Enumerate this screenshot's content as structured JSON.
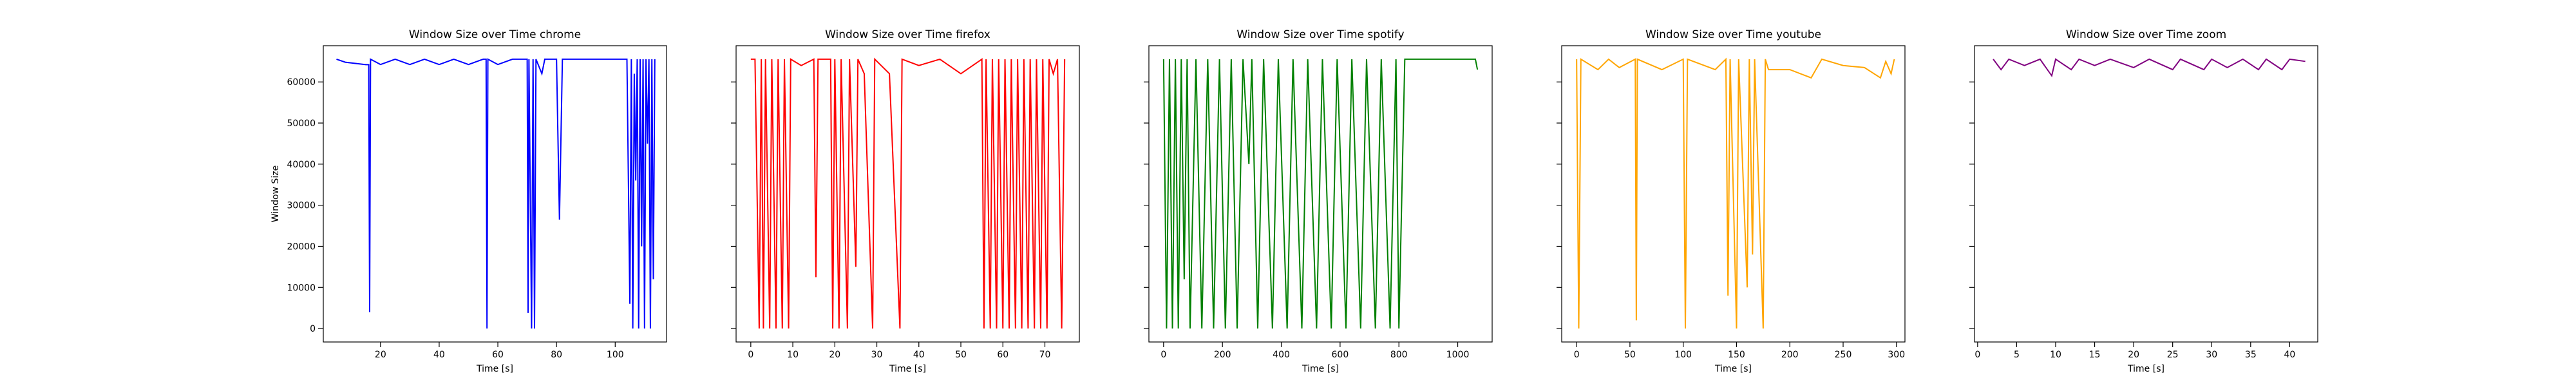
{
  "chart_data": [
    {
      "type": "line",
      "title": "Window Size over Time chrome",
      "xlabel": "Time [s]",
      "ylabel": "Window Size",
      "color": "#0000ff",
      "x": [
        5,
        8,
        15,
        16,
        16.3,
        16.6,
        20,
        25,
        30,
        35,
        40,
        45,
        50,
        55,
        56,
        56.3,
        56.6,
        60,
        65,
        70,
        70.3,
        70.6,
        71.5,
        72,
        72.5,
        73,
        75,
        76,
        80,
        81,
        82,
        90,
        100,
        104,
        105,
        105.5,
        106,
        106.5,
        107,
        107.5,
        108,
        108.5,
        109,
        109.5,
        110,
        110.5,
        111,
        111.5,
        112,
        112.5,
        113,
        113.5
      ],
      "values": [
        65535,
        64800,
        64200,
        64200,
        4000,
        65535,
        64240,
        65535,
        64240,
        65535,
        64240,
        65535,
        64240,
        65535,
        65535,
        0,
        65535,
        64240,
        65535,
        65535,
        3800,
        65535,
        0,
        65535,
        0,
        65535,
        62000,
        65535,
        65535,
        26500,
        65535,
        65535,
        65535,
        65535,
        6000,
        65535,
        0,
        62000,
        36000,
        65535,
        0,
        65535,
        20000,
        65535,
        0,
        65535,
        45000,
        65535,
        0,
        65535,
        12000,
        65535
      ],
      "xlim": [
        0.5,
        117.5
      ],
      "ylim": [
        -3277,
        68812
      ],
      "xticks": [
        20,
        40,
        60,
        80,
        100
      ],
      "yticks": [
        0,
        10000,
        20000,
        30000,
        40000,
        50000,
        60000
      ]
    },
    {
      "type": "line",
      "title": "Window Size over Time firefox",
      "xlabel": "Time [s]",
      "color": "#ff0000",
      "x": [
        0,
        1,
        2,
        2.5,
        3,
        3.5,
        4.5,
        5,
        6,
        6.5,
        7.5,
        8,
        9,
        9.5,
        12,
        15,
        15.5,
        16,
        19,
        19.5,
        20,
        21,
        21.5,
        23,
        23.5,
        25,
        25.5,
        27,
        29,
        29.5,
        33,
        35.5,
        36,
        40,
        45,
        50,
        55,
        55.5,
        56,
        57,
        57.5,
        58.5,
        59,
        60,
        60.5,
        61.5,
        62,
        63,
        63.5,
        64.5,
        65,
        66,
        66.5,
        67.5,
        68,
        69,
        69.5,
        70.5,
        71,
        72,
        73,
        74,
        74.7
      ],
      "values": [
        65535,
        65535,
        0,
        65535,
        0,
        65535,
        0,
        65535,
        0,
        65535,
        0,
        65535,
        0,
        65535,
        64000,
        65535,
        12500,
        65535,
        65535,
        0,
        65535,
        0,
        65535,
        0,
        65535,
        15000,
        65535,
        62000,
        0,
        65535,
        62000,
        0,
        65535,
        64000,
        65535,
        62000,
        65535,
        0,
        65535,
        0,
        65535,
        0,
        65535,
        0,
        65535,
        0,
        65535,
        0,
        65535,
        0,
        65535,
        0,
        65535,
        0,
        65535,
        0,
        65535,
        0,
        65535,
        62000,
        65535,
        0,
        65535
      ],
      "xlim": [
        -3.5,
        78.2
      ],
      "ylim": [
        -3277,
        68812
      ],
      "xticks": [
        0,
        10,
        20,
        30,
        40,
        50,
        60,
        70
      ]
    },
    {
      "type": "line",
      "title": "Window Size over Time spotify",
      "xlabel": "Time [s]",
      "color": "#008000",
      "x": [
        0,
        10,
        20,
        30,
        40,
        50,
        60,
        70,
        80,
        90,
        110,
        130,
        150,
        170,
        190,
        210,
        230,
        250,
        270,
        290,
        300,
        320,
        340,
        370,
        390,
        420,
        440,
        470,
        490,
        520,
        540,
        570,
        590,
        620,
        640,
        670,
        690,
        720,
        740,
        770,
        790,
        800,
        820,
        1060,
        1067
      ],
      "values": [
        65535,
        0,
        65535,
        0,
        65535,
        0,
        65535,
        12000,
        65535,
        0,
        65535,
        0,
        65535,
        0,
        65535,
        0,
        65535,
        0,
        65535,
        40000,
        65535,
        0,
        65535,
        0,
        65535,
        0,
        65535,
        0,
        65535,
        0,
        65535,
        0,
        65535,
        0,
        65535,
        0,
        65535,
        0,
        65535,
        0,
        65535,
        0,
        65535,
        65535,
        63000
      ],
      "xlim": [
        -50,
        1117
      ],
      "ylim": [
        -3277,
        68812
      ],
      "xticks": [
        0,
        200,
        400,
        600,
        800,
        1000
      ]
    },
    {
      "type": "line",
      "title": "Window Size over Time youtube",
      "xlabel": "Time [s]",
      "color": "#ffa500",
      "x": [
        0,
        2,
        4,
        20,
        30,
        40,
        55,
        56,
        57,
        80,
        100,
        102,
        104,
        130,
        140,
        142,
        144,
        150,
        152,
        160,
        162,
        165,
        167,
        175,
        177,
        180,
        200,
        220,
        230,
        250,
        270,
        285,
        290,
        295,
        298
      ],
      "values": [
        65535,
        0,
        65535,
        63000,
        65535,
        63500,
        65535,
        2000,
        65535,
        63000,
        65535,
        0,
        65535,
        63000,
        65535,
        8000,
        65535,
        0,
        65535,
        10000,
        65535,
        18000,
        65535,
        0,
        65535,
        63000,
        63000,
        61000,
        65535,
        64000,
        63500,
        61000,
        65000,
        62000,
        65535
      ],
      "xlim": [
        -14,
        308
      ],
      "ylim": [
        -3277,
        68812
      ],
      "xticks": [
        0,
        50,
        100,
        150,
        200,
        250,
        300
      ]
    },
    {
      "type": "line",
      "title": "Window Size over Time zoom",
      "xlabel": "Time [s]",
      "color": "#800080",
      "x": [
        2,
        3,
        4,
        6,
        8,
        9.5,
        10,
        12,
        13,
        15,
        17,
        20,
        22,
        25,
        26,
        29,
        30,
        32,
        34,
        36,
        37,
        39,
        40,
        42
      ],
      "values": [
        65535,
        63000,
        65535,
        64000,
        65535,
        61500,
        65535,
        63000,
        65535,
        64000,
        65535,
        63500,
        65535,
        63000,
        65535,
        63000,
        65535,
        63500,
        65535,
        63000,
        65535,
        63000,
        65535,
        65000
      ],
      "xlim": [
        -0.4,
        43.6
      ],
      "ylim": [
        -3277,
        68812
      ],
      "xticks": [
        0,
        5,
        10,
        15,
        20,
        25,
        30,
        35,
        40
      ]
    }
  ]
}
